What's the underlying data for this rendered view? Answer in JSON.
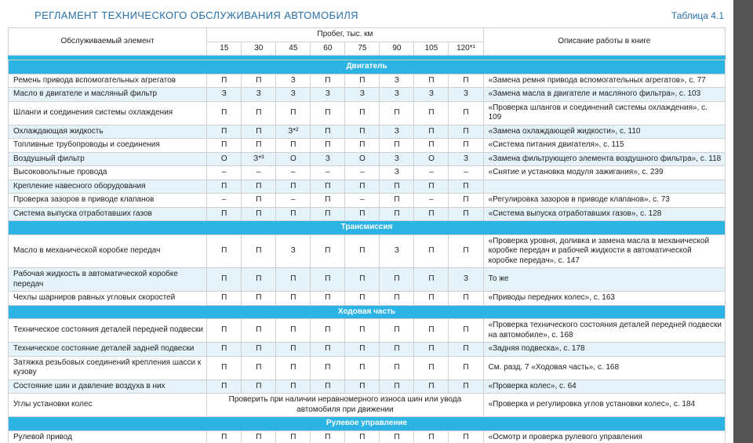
{
  "title": "РЕГЛАМЕНТ ТЕХНИЧЕСКОГО ОБСЛУЖИВАНИЯ АВТОМОБИЛЯ",
  "tableLabel": "Таблица 4.1",
  "header": {
    "element": "Обслуживаемый элемент",
    "mileage": "Пробег, тыс. км",
    "desc": "Описание работы в книге",
    "cols": [
      "15",
      "30",
      "45",
      "60",
      "75",
      "90",
      "105",
      "120*¹"
    ]
  },
  "colors": {
    "sectionBg": "#2bb3e4",
    "evenBg": "#e4f2fa",
    "titleText": "#2970a6"
  },
  "sections": [
    {
      "title": "Двигатель",
      "rows": [
        {
          "name": "Ремень привода вспомогательных агрегатов",
          "marks": [
            "П",
            "П",
            "З",
            "П",
            "П",
            "З",
            "П",
            "П"
          ],
          "desc": "«Замена ремня привода вспомогательных агрегатов», с. 77"
        },
        {
          "name": "Масло в двигателе и масляный фильтр",
          "marks": [
            "З",
            "З",
            "З",
            "З",
            "З",
            "З",
            "З",
            "З"
          ],
          "desc": "«Замена масла в двигателе и масляного фильтра», с. 103"
        },
        {
          "name": "Шланги и соединения системы охлаждения",
          "marks": [
            "П",
            "П",
            "П",
            "П",
            "П",
            "П",
            "П",
            "П"
          ],
          "desc": "«Проверка шлангов и соединений системы охлаждения», с. 109"
        },
        {
          "name": "Охлаждающая жидкость",
          "marks": [
            "П",
            "П",
            "З*²",
            "П",
            "П",
            "З",
            "П",
            "П"
          ],
          "desc": "«Замена охлаждающей жидкости», с. 110"
        },
        {
          "name": "Топливные трубопроводы и соединения",
          "marks": [
            "П",
            "П",
            "П",
            "П",
            "П",
            "П",
            "П",
            "П"
          ],
          "desc": "«Система питания двигателя», с. 115"
        },
        {
          "name": "Воздушный фильтр",
          "marks": [
            "О",
            "З*³",
            "О",
            "З",
            "О",
            "З",
            "О",
            "З"
          ],
          "desc": "«Замена фильтрующего элемента воздушного фильтра», с. 118"
        },
        {
          "name": "Высоковольтные провода",
          "marks": [
            "–",
            "–",
            "–",
            "–",
            "–",
            "З",
            "–",
            "–"
          ],
          "desc": "«Снятие и установка модуля зажигания», с. 239"
        },
        {
          "name": "Крепление навесного оборудования",
          "marks": [
            "П",
            "П",
            "П",
            "П",
            "П",
            "П",
            "П",
            "П"
          ],
          "desc": ""
        },
        {
          "name": "Проверка зазоров в приводе клапанов",
          "marks": [
            "–",
            "П",
            "–",
            "П",
            "–",
            "П",
            "–",
            "П"
          ],
          "desc": "«Регулировка зазоров в приводе клапанов», с. 73"
        },
        {
          "name": "Система выпуска отработавших газов",
          "marks": [
            "П",
            "П",
            "П",
            "П",
            "П",
            "П",
            "П",
            "П"
          ],
          "desc": "«Система выпуска отработавших газов», с. 128"
        }
      ]
    },
    {
      "title": "Трансмиссия",
      "rows": [
        {
          "name": "Масло в механической коробке передач",
          "marks": [
            "П",
            "П",
            "З",
            "П",
            "П",
            "З",
            "П",
            "П"
          ],
          "desc": "«Проверка уровня, доливка и замена масла в механической коробке передач и рабочей жидкости в автоматической коробке передач», с. 147"
        },
        {
          "name": "Рабочая жидкость в автоматической коробке передач",
          "marks": [
            "П",
            "П",
            "П",
            "П",
            "П",
            "П",
            "П",
            "З"
          ],
          "desc": "То же"
        },
        {
          "name": "Чехлы шарниров равных угловых скоростей",
          "marks": [
            "П",
            "П",
            "П",
            "П",
            "П",
            "П",
            "П",
            "П"
          ],
          "desc": "«Приводы передних колес», с. 163"
        }
      ]
    },
    {
      "title": "Ходовая часть",
      "rows": [
        {
          "name": "Техническое состояния деталей передней подвески",
          "marks": [
            "П",
            "П",
            "П",
            "П",
            "П",
            "П",
            "П",
            "П"
          ],
          "desc": "«Проверка технического состояния деталей передней подвески на автомобиле», с. 168"
        },
        {
          "name": "Техническое состояние деталей задней подвески",
          "marks": [
            "П",
            "П",
            "П",
            "П",
            "П",
            "П",
            "П",
            "П"
          ],
          "desc": "«Задняя подвеска», с. 178"
        },
        {
          "name": "Затяжка резьбовых соединений крепления шасси к кузову",
          "marks": [
            "П",
            "П",
            "П",
            "П",
            "П",
            "П",
            "П",
            "П"
          ],
          "desc": "См. разд. 7 «Ходовая часть», с. 168"
        },
        {
          "name": "Состояние шин и давление воздуха в них",
          "marks": [
            "П",
            "П",
            "П",
            "П",
            "П",
            "П",
            "П",
            "П"
          ],
          "desc": "«Проверка колес», с. 64"
        },
        {
          "name": "Углы установки колес",
          "spanned": "Проверить при наличии неравномерного износа шин или увода автомобиля при движении",
          "desc": "«Проверка и регулировка углов установки колес», с. 184"
        }
      ]
    },
    {
      "title": "Рулевое управление",
      "rows": [
        {
          "name": "Рулевой привод",
          "marks": [
            "П",
            "П",
            "П",
            "П",
            "П",
            "П",
            "П",
            "П"
          ],
          "desc": "«Осмотр и проверка рулевого управления"
        }
      ]
    }
  ]
}
